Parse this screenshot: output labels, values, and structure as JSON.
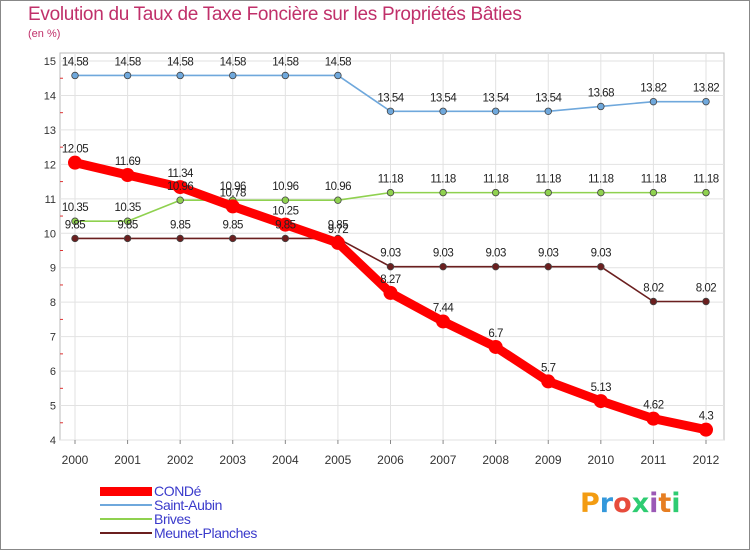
{
  "title": "Evolution du Taux de Taxe Foncière sur les Propriétés Bâties",
  "unit_label": "(en %)",
  "logo": {
    "text": "Proxiti",
    "letters": [
      "P",
      "r",
      "o",
      "x",
      "i",
      "t",
      "i"
    ],
    "colors": [
      "#f39c12",
      "#3498db",
      "#e74c3c",
      "#2ecc71",
      "#9b59b6",
      "#e67e22",
      "#2ecc71"
    ]
  },
  "chart_data": {
    "type": "line",
    "title": "Evolution du Taux de Taxe Foncière sur les Propriétés Bâties",
    "ylabel": "(en %)",
    "xlabel": "",
    "x": [
      "2000",
      "2001",
      "2002",
      "2003",
      "2004",
      "2005",
      "2006",
      "2007",
      "2008",
      "2009",
      "2010",
      "2011",
      "2012"
    ],
    "ylim": [
      4,
      15
    ],
    "yticks": [
      4,
      5,
      6,
      7,
      8,
      9,
      10,
      11,
      12,
      13,
      14,
      15
    ],
    "grid": true,
    "legend": "bottom-left",
    "series": [
      {
        "name": "CONDé",
        "color": "#ff0000",
        "width": "thick",
        "values": [
          12.05,
          11.69,
          11.34,
          10.78,
          10.25,
          9.72,
          8.27,
          7.44,
          6.7,
          5.7,
          5.13,
          4.62,
          4.3
        ],
        "labels": [
          "12.05",
          "11.69",
          "11.34",
          "10.78",
          "10.25",
          "9.72",
          "8.27",
          "7.44",
          "6.7",
          "5.7",
          "5.13",
          "4.62",
          "4.3"
        ]
      },
      {
        "name": "Saint-Aubin",
        "color": "#6fa8dc",
        "width": "thin",
        "values": [
          14.58,
          14.58,
          14.58,
          14.58,
          14.58,
          14.58,
          13.54,
          13.54,
          13.54,
          13.54,
          13.68,
          13.82,
          13.82
        ],
        "labels": [
          "14.58",
          "14.58",
          "14.58",
          "14.58",
          "14.58",
          "14.58",
          "13.54",
          "13.54",
          "13.54",
          "13.54",
          "13.68",
          "13.82",
          "13.82"
        ]
      },
      {
        "name": "Brives",
        "color": "#8fd14f",
        "width": "thin",
        "values": [
          10.35,
          10.35,
          10.96,
          10.96,
          10.96,
          10.96,
          11.18,
          11.18,
          11.18,
          11.18,
          11.18,
          11.18,
          11.18
        ],
        "labels": [
          "10.35",
          "10.35",
          "10.96",
          "10.96",
          "10.96",
          "10.96",
          "11.18",
          "11.18",
          "11.18",
          "11.18",
          "11.18",
          "11.18",
          "11.18"
        ]
      },
      {
        "name": "Meunet-Planches",
        "color": "#6b1f1f",
        "width": "thin",
        "values": [
          9.85,
          9.85,
          9.85,
          9.85,
          9.85,
          9.85,
          9.03,
          9.03,
          9.03,
          9.03,
          9.03,
          8.02,
          8.02
        ],
        "labels": [
          "9.85",
          "9.85",
          "9.85",
          "9.85",
          "9.85",
          "9.85",
          "9.03",
          "9.03",
          "9.03",
          "9.03",
          "9.03",
          "8.02",
          "8.02"
        ]
      }
    ]
  }
}
